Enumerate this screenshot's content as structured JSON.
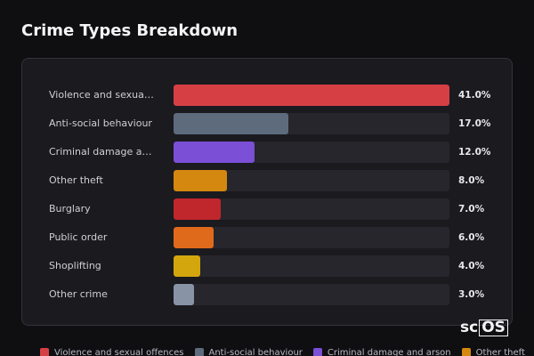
{
  "chart_data": {
    "type": "bar",
    "orientation": "horizontal",
    "title": "Crime Types Breakdown",
    "categories": [
      "Violence and sexual offences",
      "Anti-social behaviour",
      "Criminal damage and arson",
      "Other theft",
      "Burglary",
      "Public order",
      "Shoplifting",
      "Other crime"
    ],
    "values": [
      41,
      17,
      12,
      8,
      7,
      6,
      4,
      3
    ],
    "value_labels": [
      "41.0%",
      "17.0%",
      "12.0%",
      "8.0%",
      "7.0%",
      "6.0%",
      "4.0%",
      "3.0%"
    ],
    "colors": [
      "#d64045",
      "#5e6b7d",
      "#7b4fd6",
      "#d4880f",
      "#c0272d",
      "#e06a1b",
      "#d4a60d",
      "#8893a5"
    ]
  },
  "logo": {
    "prefix": "sc",
    "boxed": "OS"
  }
}
